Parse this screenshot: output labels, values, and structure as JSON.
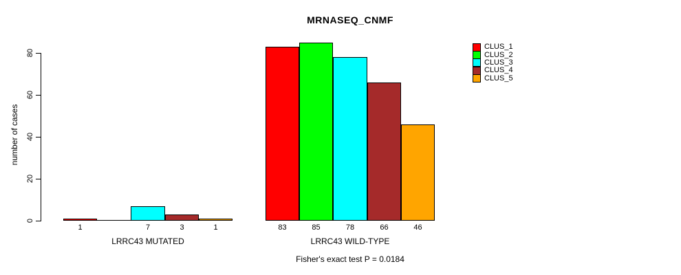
{
  "chart_data": {
    "type": "bar",
    "title": "MRNASEQ_CNMF",
    "ylabel": "number of cases",
    "ylim": [
      0,
      85
    ],
    "yticks": [
      0,
      20,
      40,
      60,
      80
    ],
    "grid": false,
    "legend_position": "top-right",
    "categories": [
      "LRRC43 MUTATED",
      "LRRC43 WILD-TYPE"
    ],
    "series": [
      {
        "name": "CLUS_1",
        "color": "#FF0000",
        "values": [
          1,
          83
        ]
      },
      {
        "name": "CLUS_2",
        "color": "#00FF00",
        "values": [
          0,
          85
        ]
      },
      {
        "name": "CLUS_3",
        "color": "#00FFFF",
        "values": [
          7,
          78
        ]
      },
      {
        "name": "CLUS_4",
        "color": "#A52A2A",
        "values": [
          3,
          66
        ]
      },
      {
        "name": "CLUS_5",
        "color": "#FFA500",
        "values": [
          1,
          46
        ]
      }
    ],
    "bar_count_labels": [
      [
        "1",
        "",
        "7",
        "3",
        "1"
      ],
      [
        "83",
        "85",
        "78",
        "66",
        "46"
      ]
    ],
    "annotation": "Fisher's exact test P = 0.0184"
  },
  "colors": {
    "background": "#FFFFFF",
    "axis": "#000000",
    "text": "#000000"
  }
}
